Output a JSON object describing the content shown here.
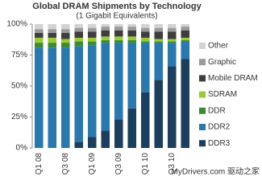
{
  "chart_data": {
    "type": "stacked_bar",
    "title": "Global DRAM Shipments by Technology",
    "subtitle": "(1 Gigabit Equivalents)",
    "watermark": "MyDrivers.com 驱动之家",
    "categories": [
      "Q1 08",
      null,
      "Q3 08",
      null,
      "Q1 09",
      null,
      "Q3 09",
      null,
      "Q1 10",
      null,
      "Q3 10",
      null
    ],
    "series": [
      {
        "name": "DDR3",
        "color": "#1d3f5e",
        "values": [
          0,
          0,
          0,
          5,
          9,
          14,
          23,
          32,
          45,
          55,
          66,
          72
        ]
      },
      {
        "name": "DDR2",
        "color": "#2b78ad",
        "values": [
          81,
          81,
          81,
          77,
          74,
          71,
          62,
          53,
          40,
          30,
          19,
          14
        ]
      },
      {
        "name": "DDR",
        "color": "#3b8a3a",
        "values": [
          4,
          4,
          4,
          4,
          3,
          2,
          2,
          2,
          1,
          1,
          1,
          1
        ]
      },
      {
        "name": "SDRAM",
        "color": "#9acb34",
        "values": [
          4,
          4,
          3,
          3,
          3,
          3,
          3,
          3,
          3,
          2,
          2,
          2
        ]
      },
      {
        "name": "Mobile DRAM",
        "color": "#3e3e3e",
        "values": [
          4,
          4,
          5,
          5,
          5,
          5,
          5,
          5,
          5,
          6,
          6,
          6
        ]
      },
      {
        "name": "Graphic",
        "color": "#9b9b9b",
        "values": [
          3,
          3,
          3,
          3,
          3,
          3,
          3,
          3,
          3,
          3,
          3,
          3
        ]
      },
      {
        "name": "Other",
        "color": "#d2d2d2",
        "values": [
          4,
          4,
          4,
          3,
          3,
          2,
          2,
          2,
          3,
          3,
          3,
          2
        ]
      }
    ],
    "ylim": [
      0,
      100
    ],
    "yticks": [
      {
        "value": 0,
        "label": "0%"
      },
      {
        "value": 25,
        "label": "25%"
      },
      {
        "value": 50,
        "label": "50%"
      },
      {
        "value": 75,
        "label": "75%"
      },
      {
        "value": 100,
        "label": "100%"
      }
    ],
    "grid": false,
    "legend": "right"
  }
}
